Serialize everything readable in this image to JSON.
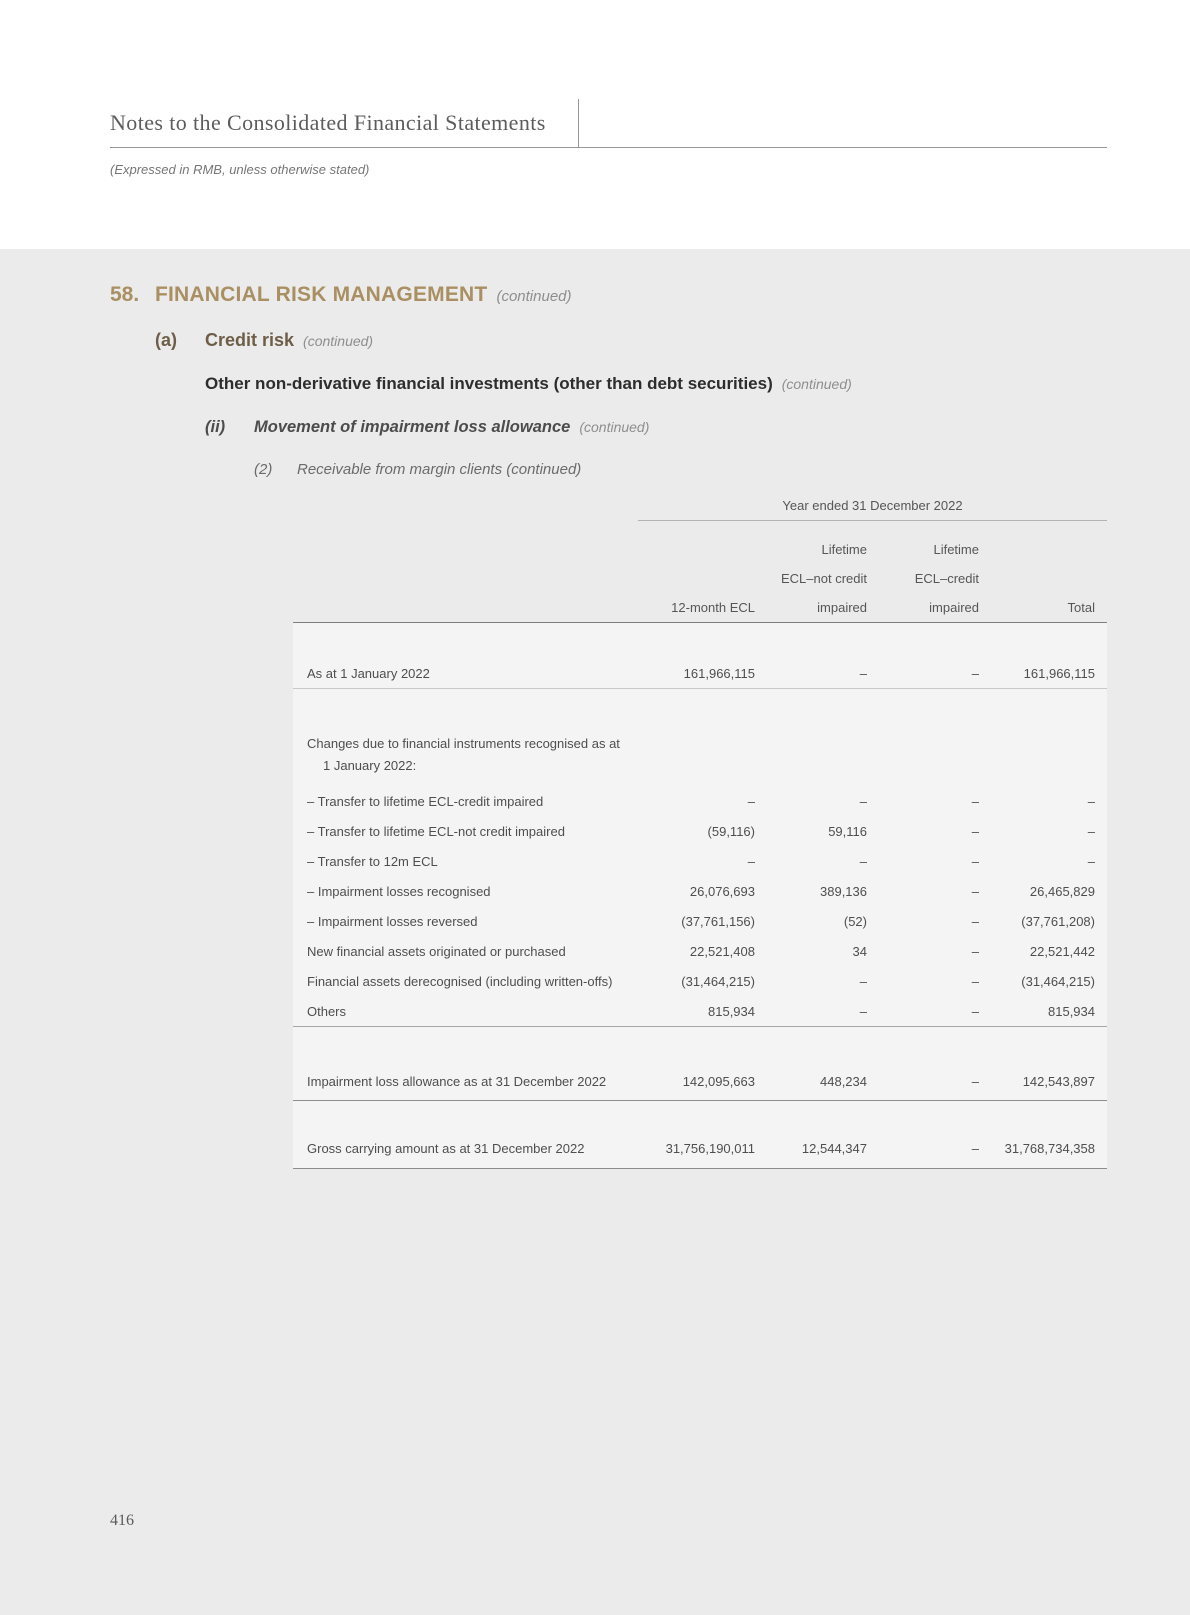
{
  "page": {
    "header_title": "Notes to the Consolidated Financial Statements",
    "header_subtitle": "(Expressed in RMB, unless otherwise stated)",
    "page_number": "416"
  },
  "colors": {
    "heading_accent": "#a98f62",
    "subheading_brown": "#6e5e48",
    "page_background": "#ebebeb",
    "table_background": "#f4f4f4"
  },
  "section": {
    "number": "58.",
    "title": "FINANCIAL RISK MANAGEMENT",
    "continued": "(continued)",
    "sub_a_label": "(a)",
    "sub_a_title": "Credit risk",
    "sub_a_continued": "(continued)",
    "sub_other_title": "Other non-derivative financial investments (other than debt securities)",
    "sub_other_continued": "(continued)",
    "sub_ii_label": "(ii)",
    "sub_ii_title": "Movement of impairment loss allowance",
    "sub_ii_continued": "(continued)",
    "sub_2_label": "(2)",
    "sub_2_title": "Receivable from margin clients (continued)"
  },
  "table": {
    "period_header": "Year ended 31 December 2022",
    "columns": [
      {
        "l1": "",
        "l2": "",
        "l3": "12-month ECL"
      },
      {
        "l1": "Lifetime",
        "l2": "ECL–not credit",
        "l3": "impaired"
      },
      {
        "l1": "Lifetime",
        "l2": "ECL–credit",
        "l3": "impaired"
      },
      {
        "l1": "",
        "l2": "",
        "l3": "Total"
      }
    ],
    "rows": [
      {
        "label": "As at 1 January 2022",
        "values": [
          "161,966,115",
          "–",
          "–",
          "161,966,115"
        ]
      },
      {
        "label": "Changes due to financial instruments recognised as at",
        "label2": "1 January 2022:"
      },
      {
        "label": "– Transfer to lifetime ECL-credit impaired",
        "values": [
          "–",
          "–",
          "–",
          "–"
        ]
      },
      {
        "label": "– Transfer to lifetime ECL-not credit impaired",
        "values": [
          "(59,116)",
          "59,116",
          "–",
          "–"
        ]
      },
      {
        "label": "– Transfer to 12m ECL",
        "values": [
          "–",
          "–",
          "–",
          "–"
        ]
      },
      {
        "label": "– Impairment losses recognised",
        "values": [
          "26,076,693",
          "389,136",
          "–",
          "26,465,829"
        ]
      },
      {
        "label": "– Impairment losses reversed",
        "values": [
          "(37,761,156)",
          "(52)",
          "–",
          "(37,761,208)"
        ]
      },
      {
        "label": "New financial assets originated or purchased",
        "values": [
          "22,521,408",
          "34",
          "–",
          "22,521,442"
        ]
      },
      {
        "label": "Financial assets derecognised (including written-offs)",
        "values": [
          "(31,464,215)",
          "–",
          "–",
          "(31,464,215)"
        ]
      },
      {
        "label": "Others",
        "values": [
          "815,934",
          "–",
          "–",
          "815,934"
        ]
      },
      {
        "label": "Impairment loss allowance as at 31 December 2022",
        "values": [
          "142,095,663",
          "448,234",
          "–",
          "142,543,897"
        ]
      },
      {
        "label": "Gross carrying amount as at 31 December 2022",
        "values": [
          "31,756,190,011",
          "12,544,347",
          "–",
          "31,768,734,358"
        ]
      }
    ]
  }
}
